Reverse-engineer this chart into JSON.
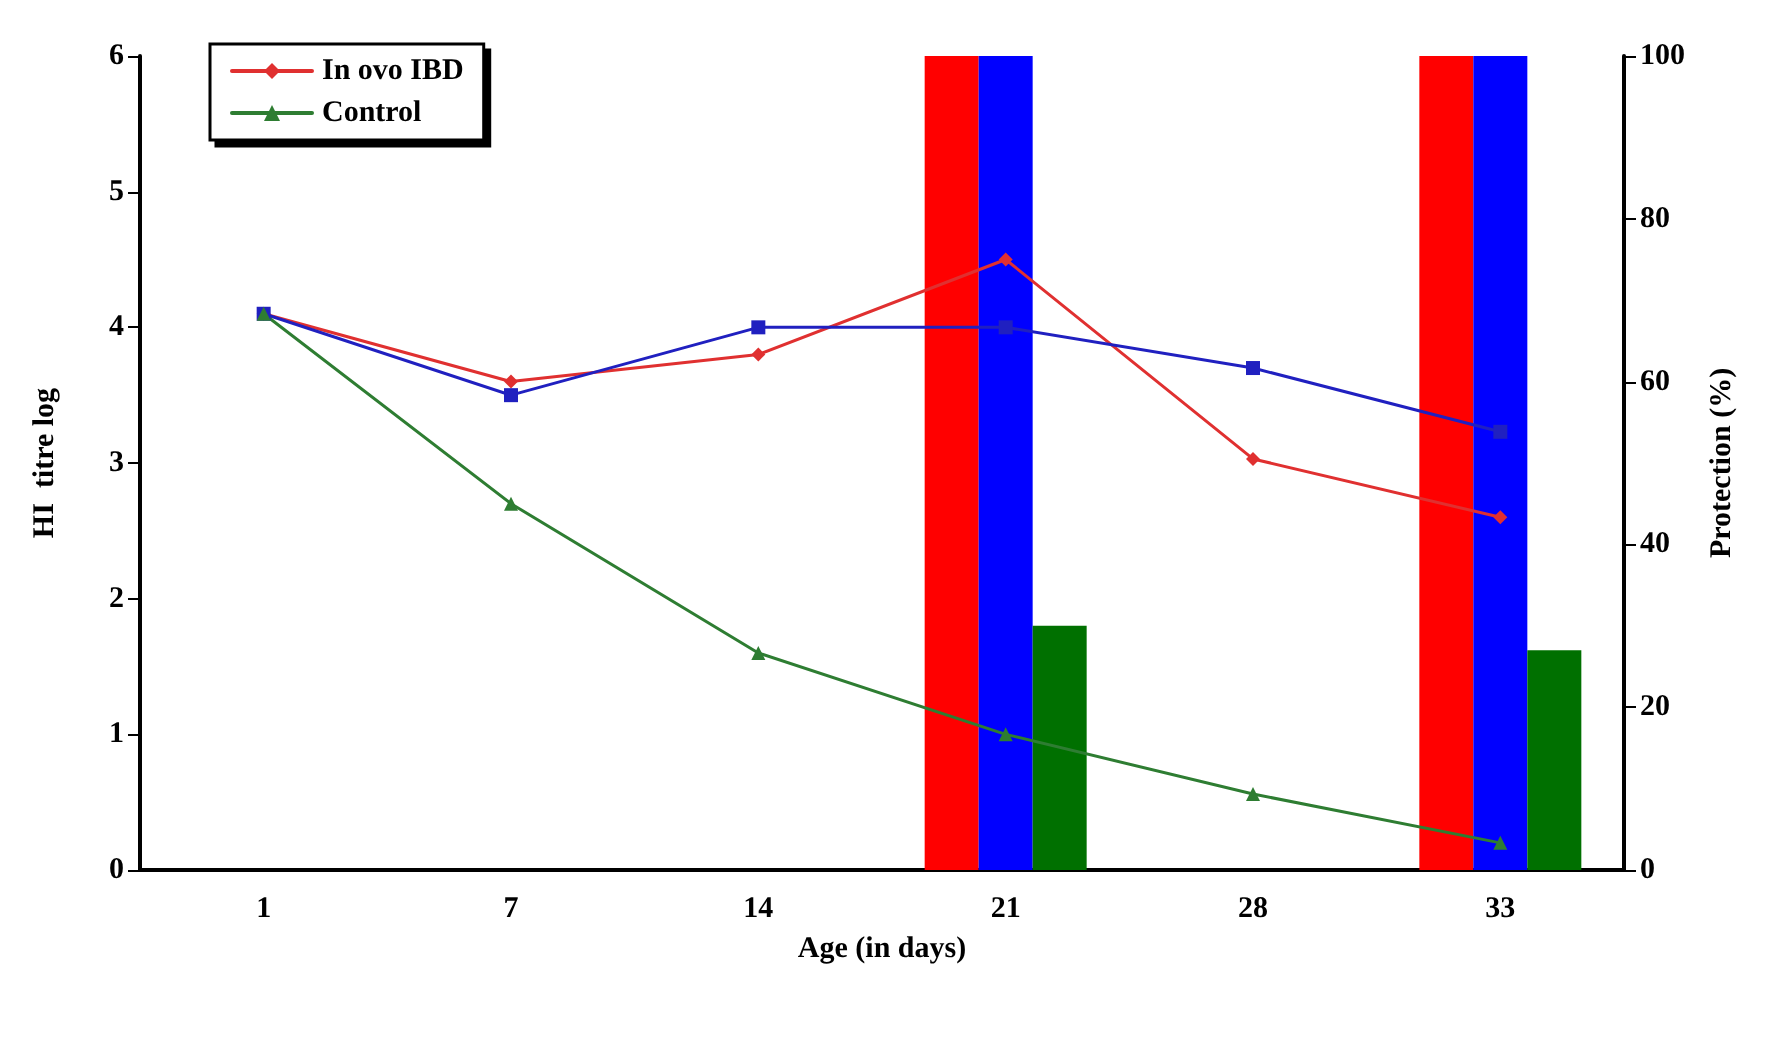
{
  "chart_data": {
    "type": "line",
    "xlabel": "Age (in days)",
    "ylabel": "HI  titre log",
    "y2label": "Protection (%)",
    "categories": [
      "1",
      "7",
      "14",
      "21",
      "28",
      "33"
    ],
    "ylim": [
      0,
      6
    ],
    "yticks": [
      0,
      1,
      2,
      3,
      4,
      5,
      6
    ],
    "y2lim": [
      0,
      100
    ],
    "y2ticks": [
      0,
      20,
      40,
      60,
      80,
      100
    ],
    "legend": "top left",
    "grid": false,
    "series": [
      {
        "name": "In ovo IBD",
        "color": "#e03030",
        "marker": "diamond",
        "values": [
          4.1,
          3.6,
          3.8,
          4.5,
          3.03,
          2.6
        ]
      },
      {
        "color": "#2020c0",
        "marker": "square",
        "values": [
          4.1,
          3.5,
          4.0,
          4.0,
          3.7,
          3.23
        ]
      },
      {
        "name": "Control",
        "color": "#2e7d32",
        "marker": "triangle",
        "values": [
          4.1,
          2.7,
          1.6,
          1.0,
          0.56,
          0.2
        ]
      },
      {
        "type": "bar",
        "axis": "y2",
        "color": "#ff0000",
        "values": [
          null,
          null,
          null,
          100,
          null,
          100
        ]
      },
      {
        "type": "bar",
        "axis": "y2",
        "color": "#0000ff",
        "values": [
          null,
          null,
          null,
          100,
          null,
          100
        ]
      },
      {
        "type": "bar",
        "axis": "y2",
        "color": "#007000",
        "values": [
          null,
          null,
          null,
          30,
          null,
          27
        ]
      }
    ]
  }
}
